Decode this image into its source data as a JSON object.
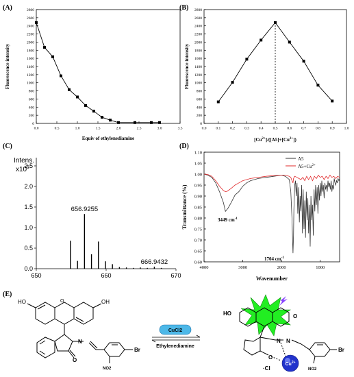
{
  "chart_data": [
    {
      "panel_label": "(A)",
      "type": "line",
      "xlabel": "Equiv of ethylenediamine",
      "ylabel": "Fluorescence intensity",
      "xlim": [
        0,
        3.5
      ],
      "ylim": [
        0,
        2800
      ],
      "x_ticks": [
        "0.0",
        "0.5",
        "1.0",
        "1.5",
        "2.0",
        "2.5",
        "3.0",
        "3.5"
      ],
      "y_ticks": [
        "0",
        "200",
        "400",
        "600",
        "800",
        "1000",
        "1200",
        "1400",
        "1600",
        "1800",
        "2000",
        "2200",
        "2400",
        "2600",
        "2800"
      ],
      "markers": "square",
      "x": [
        0.0,
        0.2,
        0.4,
        0.6,
        0.8,
        1.0,
        1.2,
        1.4,
        1.6,
        1.8,
        2.0,
        2.4,
        2.8,
        3.0
      ],
      "y": [
        2480,
        1870,
        1640,
        1170,
        830,
        650,
        440,
        300,
        150,
        80,
        20,
        20,
        20,
        20
      ]
    },
    {
      "panel_label": "(B)",
      "type": "line",
      "xlabel": "[Cu2+]/([A5]+[Cu2+])",
      "ylabel": "Fluorescence intensity",
      "xlim": [
        0,
        1.0
      ],
      "ylim": [
        0,
        2800
      ],
      "x_ticks": [
        "0.0",
        "0.1",
        "0.2",
        "0.3",
        "0.4",
        "0.5",
        "0.6",
        "0.7",
        "0.8",
        "0.9",
        "1.0"
      ],
      "y_ticks": [
        "0",
        "200",
        "400",
        "600",
        "800",
        "1000",
        "1200",
        "1400",
        "1600",
        "1800",
        "2000",
        "2200",
        "2400",
        "2600",
        "2800"
      ],
      "markers": "square",
      "x": [
        0.1,
        0.2,
        0.3,
        0.4,
        0.5,
        0.6,
        0.7,
        0.8,
        0.9
      ],
      "y": [
        530,
        1010,
        1580,
        2050,
        2480,
        2000,
        1530,
        940,
        550
      ],
      "vertical_line_x": 0.5
    },
    {
      "panel_label": "(C)",
      "type": "bar",
      "y_title": "Intens.",
      "y_exponent": "x10",
      "y_exponent_power": "5",
      "xlim": [
        650,
        670
      ],
      "ylim": [
        0,
        2.5
      ],
      "x_ticks": [
        "650",
        "660",
        "670"
      ],
      "y_ticks": [
        "0.0",
        "0.5",
        "1.0",
        "1.5",
        "2.0",
        "2.5"
      ],
      "x": [
        654.9,
        655.9,
        656.9,
        657.9,
        658.9,
        659.9,
        660.9,
        661.9,
        662.9,
        663.9,
        664.9,
        665.9,
        666.9,
        667.9
      ],
      "y": [
        0.68,
        0.19,
        1.33,
        0.35,
        0.66,
        0.18,
        0.11,
        0.04,
        0.03,
        0.02,
        0.03,
        0.02,
        0.05,
        0.02
      ],
      "peak_labels": [
        {
          "x": 656.9,
          "label": "656.9255"
        },
        {
          "x": 666.9,
          "label": "666.9432"
        }
      ]
    },
    {
      "panel_label": "(D)",
      "type": "line",
      "xlabel": "Wavenumber",
      "ylabel": "Transmittance (%)",
      "xlim": [
        4000,
        500
      ],
      "ylim": [
        0.6,
        1.1
      ],
      "x_ticks": [
        "4000",
        "3000",
        "2000",
        "1000"
      ],
      "y_ticks": [
        "0.60",
        "0.65",
        "0.70",
        "0.75",
        "0.80",
        "0.85",
        "0.90",
        "0.95",
        "1.00",
        "1.05",
        "1.10"
      ],
      "legend_position": "top-right",
      "annotations": [
        "3449 cm-1",
        "1704 cm-1"
      ],
      "series": [
        {
          "name": "A5",
          "color": "#333333",
          "x": [
            4000,
            3900,
            3800,
            3700,
            3600,
            3500,
            3449,
            3380,
            3300,
            3200,
            3100,
            3000,
            2900,
            2800,
            2600,
            2400,
            2200,
            2000,
            1900,
            1800,
            1760,
            1730,
            1715,
            1704,
            1690,
            1680,
            1660,
            1640,
            1620,
            1600,
            1580,
            1560,
            1540,
            1520,
            1500,
            1480,
            1460,
            1440,
            1420,
            1400,
            1380,
            1360,
            1340,
            1320,
            1300,
            1280,
            1260,
            1240,
            1220,
            1200,
            1180,
            1160,
            1140,
            1120,
            1100,
            1080,
            1060,
            1040,
            1020,
            1000,
            980,
            960,
            940,
            920,
            900,
            880,
            860,
            840,
            820,
            800,
            780,
            760,
            740,
            720,
            700,
            680,
            660,
            640,
            620,
            600,
            580,
            560,
            540,
            520,
            500
          ],
          "y": [
            1.0,
            0.995,
            0.985,
            0.96,
            0.92,
            0.87,
            0.83,
            0.845,
            0.87,
            0.905,
            0.92,
            0.945,
            0.96,
            0.97,
            0.98,
            0.985,
            0.99,
            0.995,
            0.99,
            0.975,
            0.92,
            0.8,
            0.7,
            0.64,
            0.72,
            0.84,
            0.95,
            0.97,
            0.9,
            0.96,
            0.82,
            0.94,
            0.78,
            0.9,
            0.83,
            0.95,
            0.73,
            0.93,
            0.75,
            0.88,
            0.71,
            0.92,
            0.79,
            0.89,
            0.73,
            0.86,
            0.67,
            0.9,
            0.79,
            0.86,
            0.72,
            0.93,
            0.83,
            0.95,
            0.86,
            0.94,
            0.82,
            0.95,
            0.88,
            0.96,
            0.9,
            0.97,
            0.92,
            0.95,
            0.89,
            0.96,
            0.93,
            0.95,
            0.92,
            0.97,
            0.94,
            0.96,
            0.93,
            0.97,
            0.92,
            0.95,
            0.93,
            0.98,
            0.96,
            0.95,
            0.97,
            0.96,
            0.98,
            0.97,
            0.98
          ]
        },
        {
          "name": "A5+Cu2+",
          "color": "#e0282a",
          "x": [
            4000,
            3900,
            3800,
            3700,
            3600,
            3500,
            3449,
            3400,
            3300,
            3200,
            3100,
            3000,
            2900,
            2800,
            2600,
            2400,
            2200,
            2000,
            1900,
            1800,
            1760,
            1730,
            1715,
            1704,
            1690,
            1660,
            1600,
            1550,
            1500,
            1450,
            1400,
            1350,
            1300,
            1250,
            1200,
            1150,
            1100,
            1050,
            1000,
            950,
            900,
            850,
            800,
            750,
            700,
            650,
            600,
            550,
            500
          ],
          "y": [
            1.0,
            0.998,
            0.99,
            0.97,
            0.945,
            0.925,
            0.92,
            0.922,
            0.935,
            0.95,
            0.96,
            0.97,
            0.975,
            0.98,
            0.985,
            0.99,
            0.993,
            0.995,
            0.995,
            0.99,
            0.985,
            0.97,
            0.965,
            0.96,
            0.98,
            0.99,
            0.985,
            0.98,
            0.975,
            0.985,
            0.97,
            0.99,
            0.975,
            0.99,
            0.97,
            0.99,
            0.98,
            0.995,
            0.985,
            0.99,
            0.975,
            0.99,
            0.98,
            0.995,
            0.985,
            0.99,
            0.98,
            0.99,
            0.985
          ]
        }
      ]
    }
  ],
  "panels": {
    "a_label": "(A)",
    "b_label": "(B)",
    "c_label": "(C)",
    "d_label": "(D)",
    "e_label": "(E)"
  },
  "scheme": {
    "reagent_forward": "CuCl2",
    "reagent_reverse": "Ethylenediamine",
    "left": {
      "oh1": "HO",
      "oh2": "OH",
      "n": "N",
      "n2": "N",
      "o": "O",
      "br": "Br",
      "no2": "NO2"
    },
    "right": {
      "oh": "HO",
      "o1": "O",
      "o2": "O",
      "n1": "N",
      "n2": "N",
      "o3": "O",
      "cl": "·Cl",
      "cu": "Cu",
      "cu_charge": "2+",
      "br": "Br",
      "no2": "NO2"
    },
    "colors": {
      "star": "#22ee22",
      "cu_ball": "#2233cc",
      "bolt": "#8844ff",
      "arrow_box": "#4db8e8"
    }
  }
}
